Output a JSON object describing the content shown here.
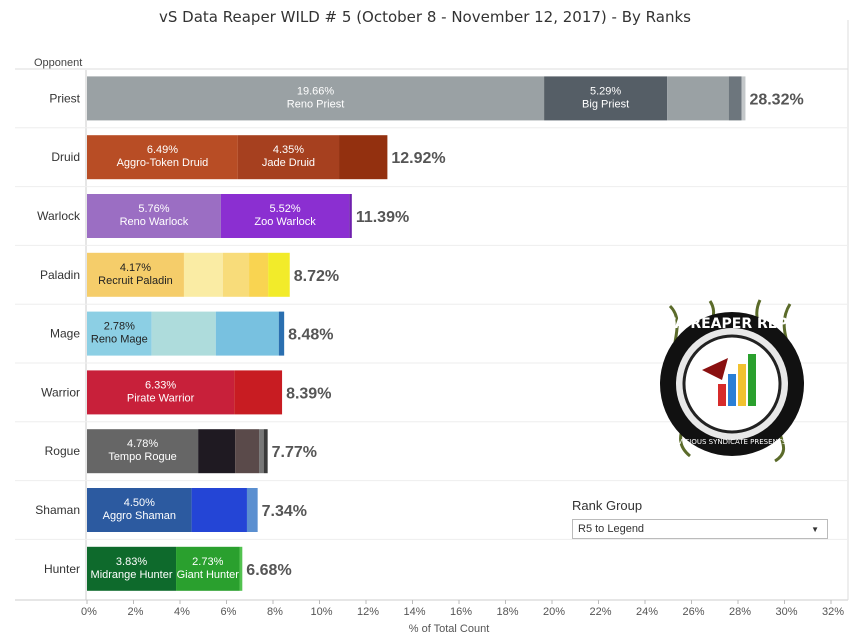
{
  "title": "vS Data Reaper WILD # 5 (October 8 - November 12, 2017) - By Ranks",
  "opponent_header": "Opponent",
  "rank_group": {
    "title": "Rank Group",
    "selected": "R5 to Legend"
  },
  "logo": {
    "text": "DATA REAPER REPORT",
    "subtext": "VICIOUS SYNDICATE PRESENTS"
  },
  "chart_data": {
    "type": "bar",
    "orientation": "horizontal",
    "stacked": true,
    "xlabel": "% of Total Count",
    "xlim": [
      0,
      32
    ],
    "xticks": [
      "0%",
      "2%",
      "4%",
      "6%",
      "8%",
      "10%",
      "12%",
      "14%",
      "16%",
      "18%",
      "20%",
      "22%",
      "24%",
      "26%",
      "28%",
      "30%",
      "32%"
    ],
    "categories": [
      {
        "name": "Priest",
        "total": "28.32%",
        "segments": [
          {
            "value": 19.66,
            "color": "#9aa1a4",
            "pct": "19.66%",
            "label": "Reno Priest"
          },
          {
            "value": 5.29,
            "color": "#555e66",
            "pct": "5.29%",
            "label": "Big Priest"
          },
          {
            "value": 2.65,
            "color": "#9aa1a4"
          },
          {
            "value": 0.55,
            "color": "#6d767d"
          },
          {
            "value": 0.17,
            "color": "#c3c7c9"
          }
        ]
      },
      {
        "name": "Druid",
        "total": "12.92%",
        "segments": [
          {
            "value": 6.49,
            "color": "#b84d25",
            "pct": "6.49%",
            "label": "Aggro-Token Druid"
          },
          {
            "value": 4.35,
            "color": "#a6401f",
            "pct": "4.35%",
            "label": "Jade Druid"
          },
          {
            "value": 2.08,
            "color": "#93300f"
          }
        ]
      },
      {
        "name": "Warlock",
        "total": "11.39%",
        "segments": [
          {
            "value": 5.76,
            "color": "#9b6ec3",
            "pct": "5.76%",
            "label": "Reno Warlock"
          },
          {
            "value": 5.52,
            "color": "#8b2fd1",
            "pct": "5.52%",
            "label": "Zoo Warlock"
          },
          {
            "value": 0.11,
            "color": "#6f20ad"
          }
        ]
      },
      {
        "name": "Paladin",
        "total": "8.72%",
        "segments": [
          {
            "value": 4.17,
            "color": "#f5cd6a",
            "pct": "4.17%",
            "label": "Recruit Paladin",
            "dark": true
          },
          {
            "value": 1.67,
            "color": "#faeca4"
          },
          {
            "value": 1.13,
            "color": "#f8dc7a"
          },
          {
            "value": 0.82,
            "color": "#f9d451"
          },
          {
            "value": 0.93,
            "color": "#f2eb2a"
          }
        ]
      },
      {
        "name": "Mage",
        "total": "8.48%",
        "segments": [
          {
            "value": 2.78,
            "color": "#8ccfe4",
            "pct": "2.78%",
            "label": "Reno Mage",
            "dark": true
          },
          {
            "value": 2.76,
            "color": "#aedcdc"
          },
          {
            "value": 2.71,
            "color": "#78c1e0"
          },
          {
            "value": 0.23,
            "color": "#2a6fb0"
          }
        ]
      },
      {
        "name": "Warrior",
        "total": "8.39%",
        "segments": [
          {
            "value": 6.33,
            "color": "#c8203a",
            "pct": "6.33%",
            "label": "Pirate Warrior"
          },
          {
            "value": 2.06,
            "color": "#c81c22"
          }
        ]
      },
      {
        "name": "Rogue",
        "total": "7.77%",
        "segments": [
          {
            "value": 4.78,
            "color": "#666666",
            "pct": "4.78%",
            "label": "Tempo Rogue"
          },
          {
            "value": 1.59,
            "color": "#1f1a22"
          },
          {
            "value": 1.03,
            "color": "#5a4a4a"
          },
          {
            "value": 0.2,
            "color": "#777777"
          },
          {
            "value": 0.17,
            "color": "#3a3a3a"
          }
        ]
      },
      {
        "name": "Shaman",
        "total": "7.34%",
        "segments": [
          {
            "value": 4.5,
            "color": "#2c5aa0",
            "pct": "4.50%",
            "label": "Aggro Shaman"
          },
          {
            "value": 2.38,
            "color": "#2445d6"
          },
          {
            "value": 0.46,
            "color": "#5b8fd0"
          }
        ]
      },
      {
        "name": "Hunter",
        "total": "6.68%",
        "segments": [
          {
            "value": 3.83,
            "color": "#0e6a2c",
            "pct": "3.83%",
            "label": "Midrange Hunter"
          },
          {
            "value": 2.73,
            "color": "#2aa02e",
            "pct": "2.73%",
            "label": "Giant Hunter"
          },
          {
            "value": 0.12,
            "color": "#52c24f"
          }
        ]
      }
    ]
  }
}
